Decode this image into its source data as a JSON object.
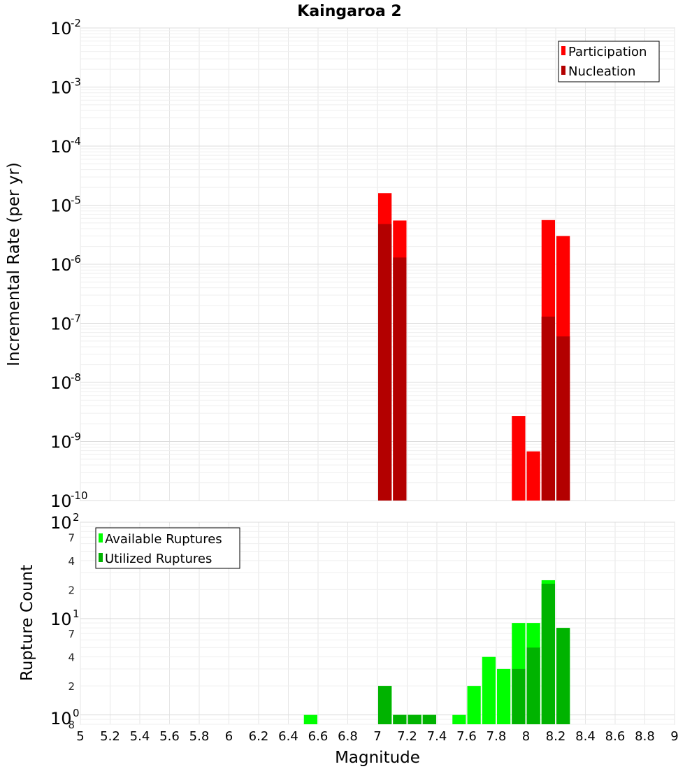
{
  "chart_data": [
    {
      "type": "bar",
      "title": "Kaingaroa 2",
      "ylabel": "Incremental Rate (per yr)",
      "xlabel": "",
      "xlim": [
        5,
        9
      ],
      "ylim": [
        1e-10,
        0.01
      ],
      "yscale": "log",
      "bin_width": 0.1,
      "grid": true,
      "legend_position": "top-right",
      "y_tick_labels": [
        {
          "base": "10",
          "exp": "-10"
        },
        {
          "base": "10",
          "exp": "-9"
        },
        {
          "base": "10",
          "exp": "-8"
        },
        {
          "base": "10",
          "exp": "-7"
        },
        {
          "base": "10",
          "exp": "-6"
        },
        {
          "base": "10",
          "exp": "-5"
        },
        {
          "base": "10",
          "exp": "-4"
        },
        {
          "base": "10",
          "exp": "-3"
        },
        {
          "base": "10",
          "exp": "-2"
        }
      ],
      "series": [
        {
          "name": "Participation",
          "color": "#ff0000",
          "x": [
            7.05,
            7.15,
            7.95,
            8.05,
            8.15,
            8.25
          ],
          "values": [
            1.6e-05,
            5.5e-06,
            2.7e-09,
            6.8e-10,
            5.6e-06,
            3e-06
          ]
        },
        {
          "name": "Nucleation",
          "color": "#b30000",
          "x": [
            7.05,
            7.15,
            8.15,
            8.25
          ],
          "values": [
            4.8e-06,
            1.3e-06,
            1.3e-07,
            6e-08
          ]
        }
      ]
    },
    {
      "type": "bar",
      "title": "",
      "ylabel": "Rupture Count",
      "xlabel": "Magnitude",
      "xlim": [
        5,
        9
      ],
      "ylim": [
        0.8,
        100
      ],
      "yscale": "log",
      "bin_width": 0.1,
      "grid": true,
      "legend_position": "top-left",
      "x_tick_labels": [
        "5",
        "5.2",
        "5.4",
        "5.6",
        "5.8",
        "6",
        "6.2",
        "6.4",
        "6.6",
        "6.8",
        "7",
        "7.2",
        "7.4",
        "7.6",
        "7.8",
        "8",
        "8.2",
        "8.4",
        "8.6",
        "8.8",
        "9"
      ],
      "y_tick_labels": [
        {
          "base": "10",
          "exp": "0"
        },
        {
          "base": "10",
          "exp": "1"
        },
        {
          "base": "10",
          "exp": "2"
        }
      ],
      "y_minor_tick_labels": [
        "8",
        "2",
        "4",
        "7",
        "2",
        "4",
        "7"
      ],
      "series": [
        {
          "name": "Available Ruptures",
          "color": "#00ff00",
          "x": [
            6.55,
            7.05,
            7.15,
            7.25,
            7.35,
            7.55,
            7.65,
            7.75,
            7.85,
            7.95,
            8.05,
            8.15,
            8.25
          ],
          "values": [
            1,
            2,
            1,
            1,
            1,
            1,
            2,
            4,
            3,
            9,
            9,
            25,
            8
          ]
        },
        {
          "name": "Utilized Ruptures",
          "color": "#00b300",
          "x": [
            7.05,
            7.15,
            7.25,
            7.35,
            7.95,
            8.05,
            8.15,
            8.25
          ],
          "values": [
            2,
            1,
            1,
            1,
            3,
            5,
            23,
            8
          ]
        }
      ]
    }
  ]
}
